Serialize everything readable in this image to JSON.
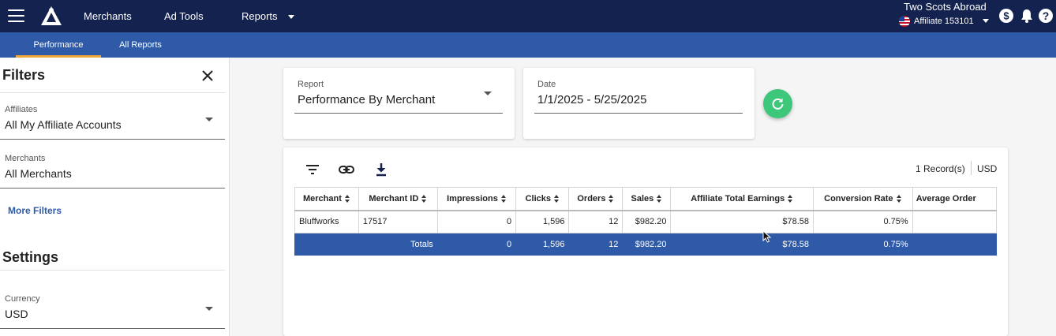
{
  "header": {
    "nav": [
      {
        "label": "Merchants"
      },
      {
        "label": "Ad Tools"
      },
      {
        "label": "Reports"
      }
    ],
    "account_name": "Two Scots Abroad",
    "account_id": "Affiliate 153101"
  },
  "subnav": {
    "tabs": [
      {
        "label": "Performance",
        "active": true
      },
      {
        "label": "All Reports",
        "active": false
      }
    ]
  },
  "sidebar": {
    "filters_title": "Filters",
    "affiliates": {
      "label": "Affiliates",
      "value": "All My Affiliate Accounts"
    },
    "merchants": {
      "label": "Merchants",
      "value": "All Merchants"
    },
    "more_filters": "More Filters",
    "settings_title": "Settings",
    "currency": {
      "label": "Currency",
      "value": "USD"
    }
  },
  "report": {
    "label": "Report",
    "value": "Performance By Merchant"
  },
  "date": {
    "label": "Date",
    "value": "1/1/2025 - 5/25/2025"
  },
  "table": {
    "record_count": "1 Record(s)",
    "currency": "USD",
    "columns": [
      "Merchant",
      "Merchant ID",
      "Impressions",
      "Clicks",
      "Orders",
      "Sales",
      "Affiliate Total Earnings",
      "Conversion Rate",
      "Average Order"
    ],
    "rows": [
      [
        "Bluffworks",
        "17517",
        "0",
        "1,596",
        "12",
        "$982.20",
        "$78.58",
        "0.75%",
        ""
      ]
    ],
    "totals": [
      "",
      "Totals",
      "0",
      "1,596",
      "12",
      "$982.20",
      "$78.58",
      "0.75%",
      ""
    ]
  },
  "colors": {
    "topbar": "#14224f",
    "subbar": "#2e5aa7",
    "active_tab_underline": "#f0a63a",
    "refresh_button": "#3dc77a"
  }
}
